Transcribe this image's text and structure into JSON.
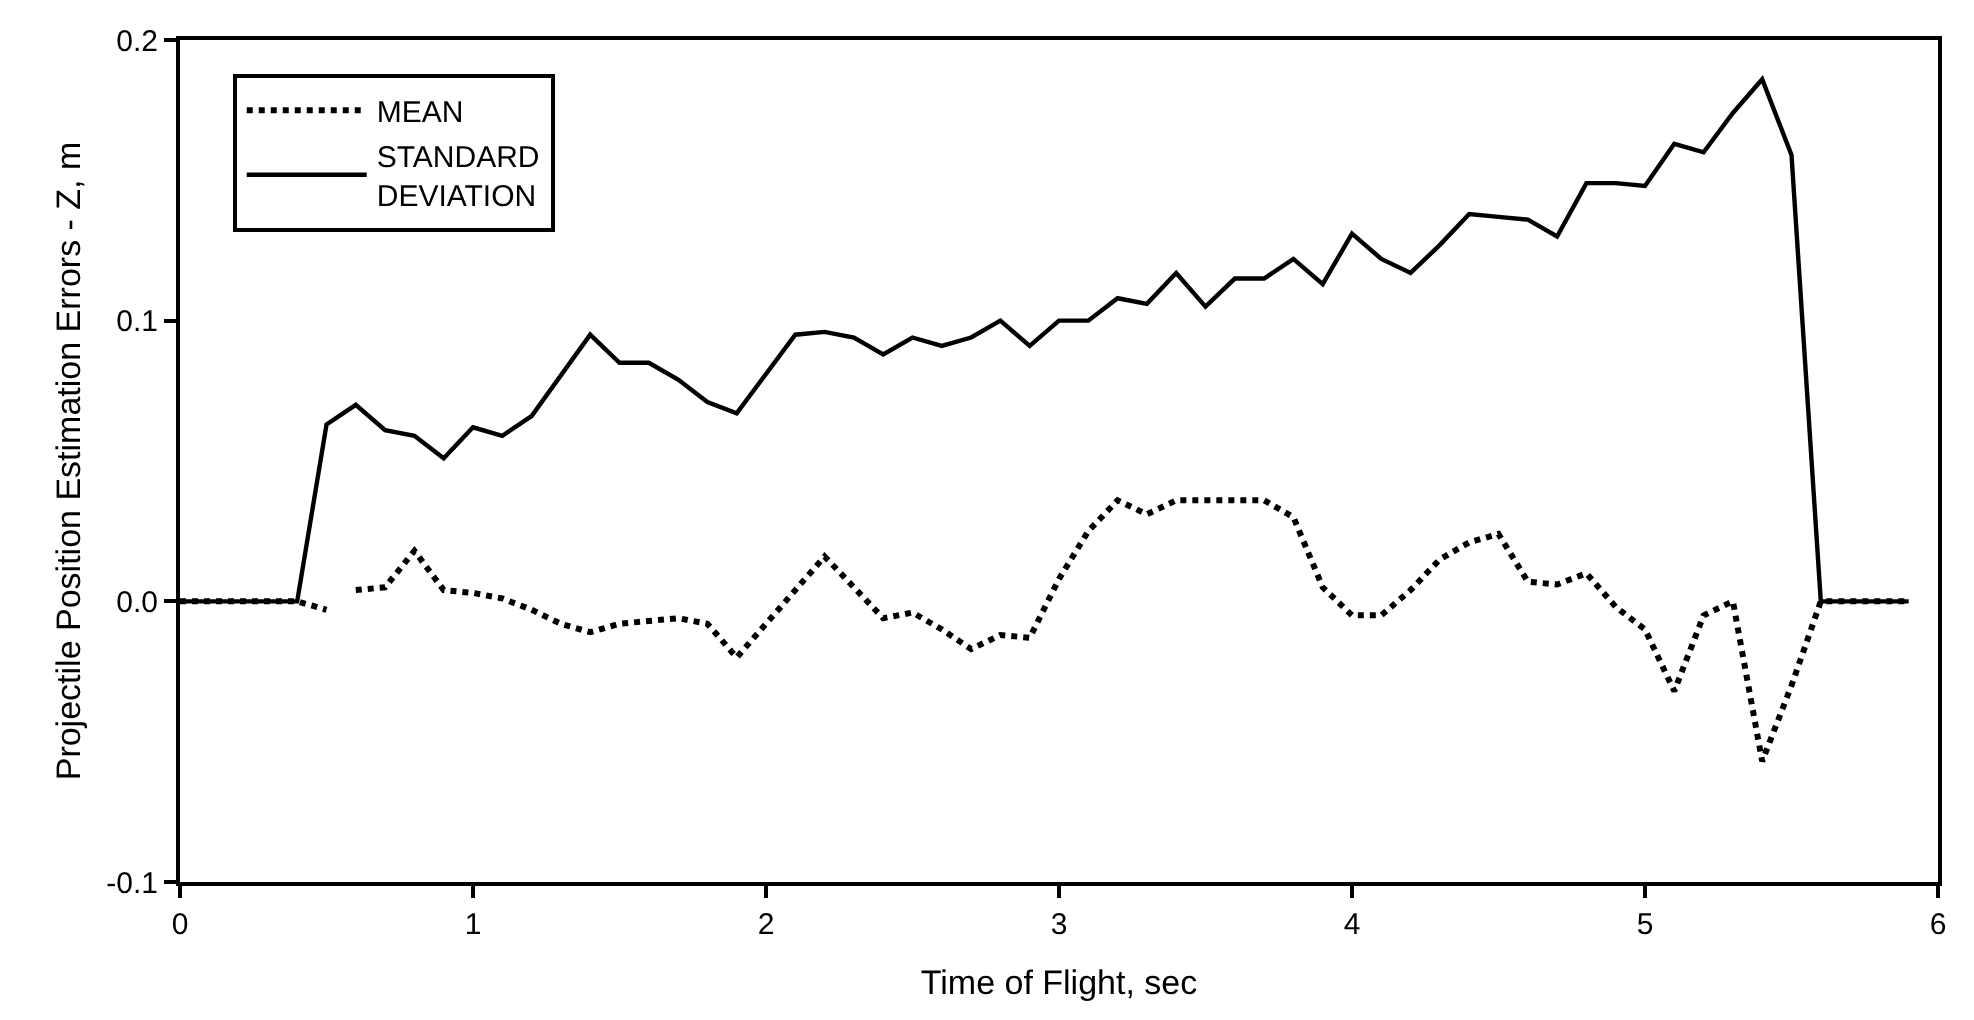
{
  "chart_data": {
    "type": "line",
    "xlabel": "Time of Flight, sec",
    "ylabel": "Projectile Position Estimation Errors - Z, m",
    "xlim": [
      0,
      6
    ],
    "xticks": [
      0,
      1,
      2,
      3,
      4,
      5,
      6
    ],
    "ylim": [
      -0.1,
      0.2
    ],
    "yticks": [
      {
        "value": -0.1,
        "label": "-0.1"
      },
      {
        "value": 0.0,
        "label": "0.0"
      },
      {
        "value": 0.1,
        "label": "0.1"
      },
      {
        "value": 0.2,
        "label": "0.2"
      }
    ],
    "legend": "top left",
    "marker": "none",
    "series": [
      {
        "name": "MEAN",
        "color": "#000000",
        "line_style": "dotted",
        "x": [
          0,
          0.4,
          0.5,
          0.55,
          0.6,
          0.7,
          0.8,
          0.9,
          1.0,
          1.1,
          1.2,
          1.3,
          1.4,
          1.5,
          1.6,
          1.7,
          1.8,
          1.9,
          2.0,
          2.1,
          2.2,
          2.3,
          2.4,
          2.5,
          2.6,
          2.7,
          2.8,
          2.9,
          3.0,
          3.1,
          3.2,
          3.3,
          3.4,
          3.5,
          3.6,
          3.7,
          3.8,
          3.9,
          4.0,
          4.1,
          4.2,
          4.3,
          4.4,
          4.5,
          4.6,
          4.7,
          4.8,
          4.9,
          5.0,
          5.1,
          5.2,
          5.3,
          5.4,
          5.5,
          5.6,
          5.9
        ],
        "values": [
          0,
          0,
          -0.003,
          null,
          0.004,
          0.005,
          0.018,
          0.004,
          0.003,
          0.001,
          -0.003,
          -0.008,
          -0.011,
          -0.008,
          -0.007,
          -0.006,
          -0.008,
          -0.02,
          -0.008,
          0.004,
          0.016,
          0.005,
          -0.006,
          -0.004,
          -0.01,
          -0.017,
          -0.012,
          -0.013,
          0.008,
          0.025,
          0.036,
          0.031,
          0.036,
          0.036,
          0.036,
          0.036,
          0.03,
          0.005,
          -0.005,
          -0.005,
          0.004,
          0.015,
          0.021,
          0.024,
          0.007,
          0.006,
          0.01,
          -0.002,
          -0.01,
          -0.032,
          -0.005,
          0.0,
          -0.057,
          -0.03,
          0.0,
          0.0
        ]
      },
      {
        "name": "STANDARD DEVIATION",
        "color": "#000000",
        "line_style": "solid",
        "x": [
          0,
          0.4,
          0.5,
          0.6,
          0.7,
          0.8,
          0.9,
          1.0,
          1.1,
          1.2,
          1.4,
          1.5,
          1.6,
          1.7,
          1.8,
          1.9,
          2.1,
          2.2,
          2.3,
          2.4,
          2.5,
          2.6,
          2.7,
          2.8,
          2.9,
          3.0,
          3.1,
          3.2,
          3.3,
          3.4,
          3.5,
          3.6,
          3.7,
          3.8,
          3.9,
          4.0,
          4.1,
          4.2,
          4.3,
          4.4,
          4.5,
          4.6,
          4.7,
          4.8,
          4.9,
          5.0,
          5.1,
          5.2,
          5.3,
          5.4,
          5.5,
          5.6,
          5.9
        ],
        "values": [
          0,
          0,
          0.063,
          0.07,
          0.061,
          0.059,
          0.051,
          0.062,
          0.059,
          0.066,
          0.095,
          0.085,
          0.085,
          0.079,
          0.071,
          0.067,
          0.095,
          0.096,
          0.094,
          0.088,
          0.094,
          0.091,
          0.094,
          0.1,
          0.091,
          0.1,
          0.1,
          0.108,
          0.106,
          0.117,
          0.105,
          0.115,
          0.115,
          0.122,
          0.113,
          0.131,
          0.122,
          0.117,
          0.127,
          0.138,
          0.137,
          0.136,
          0.13,
          0.149,
          0.149,
          0.148,
          0.163,
          0.16,
          0.174,
          0.186,
          0.159,
          0,
          0
        ]
      }
    ]
  }
}
